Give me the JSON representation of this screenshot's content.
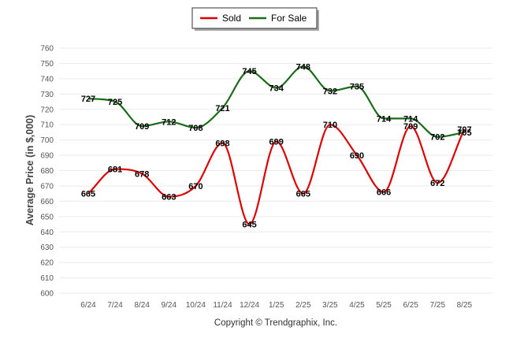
{
  "legend": {
    "sold_label": "Sold",
    "forsale_label": "For Sale"
  },
  "footer": "Copyright © Trendgraphix, Inc.",
  "colors": {
    "sold": "#dd0000",
    "for_sale": "#1a6b1a",
    "grid": "#ebebeb"
  },
  "chart_data": {
    "type": "line",
    "categories": [
      "6/24",
      "7/24",
      "8/24",
      "9/24",
      "10/24",
      "11/24",
      "12/24",
      "1/25",
      "2/25",
      "3/25",
      "4/25",
      "5/25",
      "6/25",
      "7/25",
      "8/25"
    ],
    "series": [
      {
        "name": "Sold",
        "values": [
          665,
          681,
          678,
          663,
          670,
          698,
          645,
          699,
          665,
          710,
          690,
          666,
          709,
          672,
          707
        ]
      },
      {
        "name": "For Sale",
        "values": [
          727,
          725,
          709,
          712,
          708,
          721,
          745,
          734,
          748,
          732,
          735,
          714,
          714,
          702,
          705
        ]
      }
    ],
    "ylabel": "Average Price (in $,000)",
    "ylim": [
      600,
      760
    ],
    "yticks": [
      600,
      610,
      620,
      630,
      640,
      650,
      660,
      670,
      680,
      690,
      700,
      710,
      720,
      730,
      740,
      750,
      760
    ],
    "grid": true,
    "legend_position": "top-center"
  }
}
